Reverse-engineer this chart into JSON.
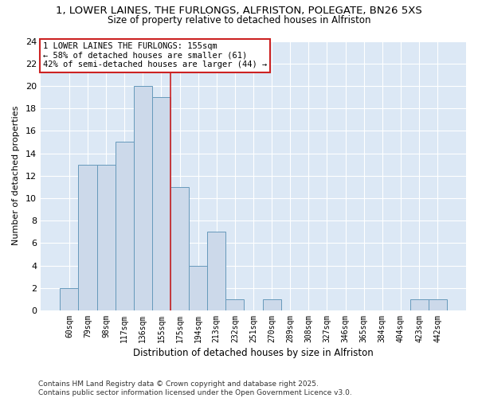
{
  "title_line1": "1, LOWER LAINES, THE FURLONGS, ALFRISTON, POLEGATE, BN26 5XS",
  "title_line2": "Size of property relative to detached houses in Alfriston",
  "xlabel": "Distribution of detached houses by size in Alfriston",
  "ylabel": "Number of detached properties",
  "bin_labels": [
    "60sqm",
    "79sqm",
    "98sqm",
    "117sqm",
    "136sqm",
    "155sqm",
    "175sqm",
    "194sqm",
    "213sqm",
    "232sqm",
    "251sqm",
    "270sqm",
    "289sqm",
    "308sqm",
    "327sqm",
    "346sqm",
    "365sqm",
    "384sqm",
    "404sqm",
    "423sqm",
    "442sqm"
  ],
  "bar_heights": [
    2,
    13,
    13,
    15,
    20,
    19,
    11,
    4,
    7,
    1,
    0,
    1,
    0,
    0,
    0,
    0,
    0,
    0,
    0,
    1,
    1
  ],
  "bar_color": "#ccd9ea",
  "bar_edge_color": "#6699bb",
  "vline_x": 5,
  "vline_color": "#cc2222",
  "annotation_text": "1 LOWER LAINES THE FURLONGS: 155sqm\n← 58% of detached houses are smaller (61)\n42% of semi-detached houses are larger (44) →",
  "annotation_box_color": "white",
  "annotation_box_edge": "#cc2222",
  "ylim": [
    0,
    24
  ],
  "yticks": [
    0,
    2,
    4,
    6,
    8,
    10,
    12,
    14,
    16,
    18,
    20,
    22,
    24
  ],
  "footer_text": "Contains HM Land Registry data © Crown copyright and database right 2025.\nContains public sector information licensed under the Open Government Licence v3.0.",
  "bg_color": "#ffffff",
  "plot_bg_color": "#dce8f5",
  "grid_color": "#ffffff"
}
